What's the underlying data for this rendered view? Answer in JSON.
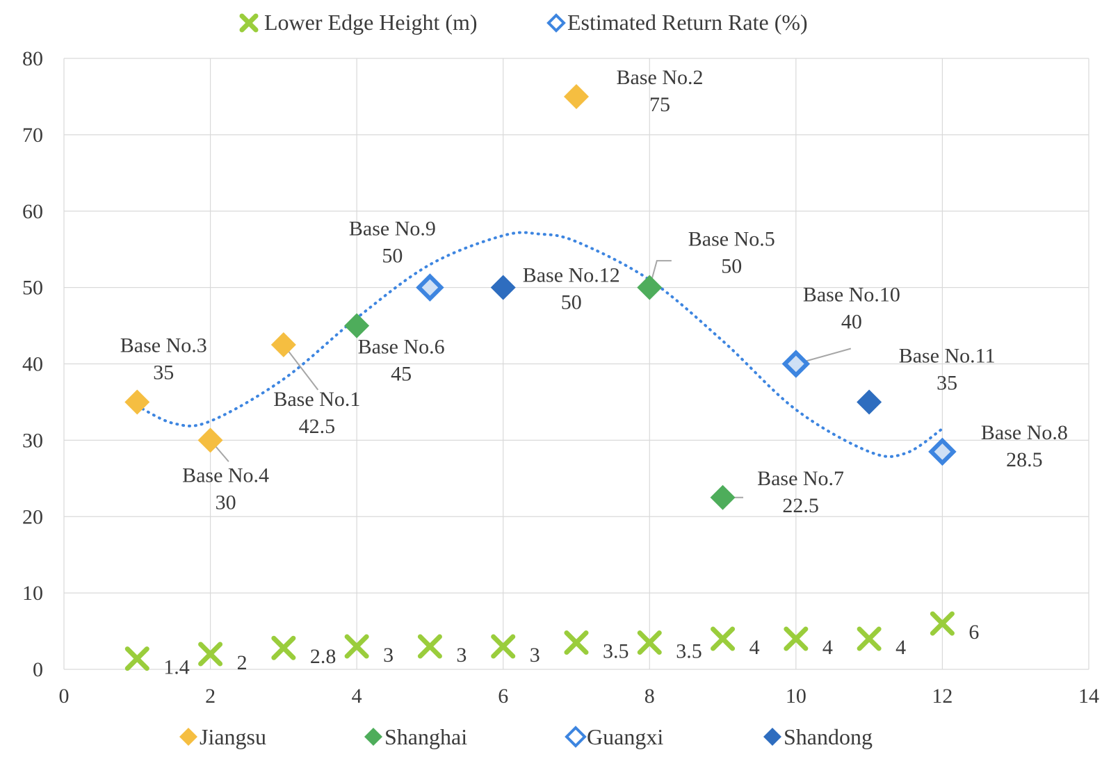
{
  "chart_data": {
    "type": "scatter",
    "xlim": [
      0,
      14
    ],
    "ylim": [
      0,
      80
    ],
    "x_ticks": [
      0,
      2,
      4,
      6,
      8,
      10,
      12,
      14
    ],
    "y_ticks": [
      0,
      10,
      20,
      30,
      40,
      50,
      60,
      70,
      80
    ],
    "grid": true,
    "legend_top": [
      "Lower Edge Height (m)",
      "Estimated Return Rate (%)"
    ],
    "legend_bottom": [
      "Jiangsu",
      "Shanghai",
      "Guangxi",
      "Shandong"
    ],
    "colors": {
      "Jiangsu": "#F5BE41",
      "Shanghai": "#4EAD5B",
      "Guangxi": "#3D85E0",
      "Shandong": "#2E6DBF",
      "height": "#9ACD3C",
      "trend": "#3D85E0"
    },
    "return_rate": [
      {
        "label": "Base No.1",
        "x": 3,
        "y": 42.5,
        "value": "42.5",
        "group": "Jiangsu"
      },
      {
        "label": "Base No.2",
        "x": 7,
        "y": 75,
        "value": "75",
        "group": "Jiangsu"
      },
      {
        "label": "Base No.3",
        "x": 1,
        "y": 35,
        "value": "35",
        "group": "Jiangsu"
      },
      {
        "label": "Base No.4",
        "x": 2,
        "y": 30,
        "value": "30",
        "group": "Jiangsu"
      },
      {
        "label": "Base No.5",
        "x": 8,
        "y": 50,
        "value": "50",
        "group": "Shanghai"
      },
      {
        "label": "Base No.6",
        "x": 4,
        "y": 45,
        "value": "45",
        "group": "Shanghai"
      },
      {
        "label": "Base No.7",
        "x": 9,
        "y": 22.5,
        "value": "22.5",
        "group": "Shanghai"
      },
      {
        "label": "Base No.8",
        "x": 12,
        "y": 28.5,
        "value": "28.5",
        "group": "Guangxi"
      },
      {
        "label": "Base No.9",
        "x": 5,
        "y": 50,
        "value": "50",
        "group": "Guangxi"
      },
      {
        "label": "Base No.10",
        "x": 10,
        "y": 40,
        "value": "40",
        "group": "Guangxi"
      },
      {
        "label": "Base No.11",
        "x": 11,
        "y": 35,
        "value": "35",
        "group": "Shandong"
      },
      {
        "label": "Base No.12",
        "x": 6,
        "y": 50,
        "value": "50",
        "group": "Shandong"
      }
    ],
    "lower_edge_height": [
      {
        "x": 1,
        "y": 1.4,
        "value": "1.4"
      },
      {
        "x": 2,
        "y": 2,
        "value": "2"
      },
      {
        "x": 3,
        "y": 2.8,
        "value": "2.8"
      },
      {
        "x": 4,
        "y": 3,
        "value": "3"
      },
      {
        "x": 5,
        "y": 3,
        "value": "3"
      },
      {
        "x": 6,
        "y": 3,
        "value": "3"
      },
      {
        "x": 7,
        "y": 3.5,
        "value": "3.5"
      },
      {
        "x": 8,
        "y": 3.5,
        "value": "3.5"
      },
      {
        "x": 9,
        "y": 4,
        "value": "4"
      },
      {
        "x": 10,
        "y": 4,
        "value": "4"
      },
      {
        "x": 11,
        "y": 4,
        "value": "4"
      },
      {
        "x": 12,
        "y": 6,
        "value": "6"
      }
    ],
    "trendline": {
      "type": "polynomial",
      "style": "dotted",
      "points": [
        [
          1,
          34.5
        ],
        [
          1.5,
          32.2
        ],
        [
          2,
          32.5
        ],
        [
          3,
          38
        ],
        [
          4,
          46
        ],
        [
          5,
          53
        ],
        [
          6,
          56.8
        ],
        [
          6.5,
          57
        ],
        [
          7,
          56
        ],
        [
          8,
          51
        ],
        [
          9,
          43
        ],
        [
          10,
          34
        ],
        [
          11,
          28.5
        ],
        [
          11.5,
          28.3
        ],
        [
          12,
          31.5
        ]
      ]
    }
  }
}
